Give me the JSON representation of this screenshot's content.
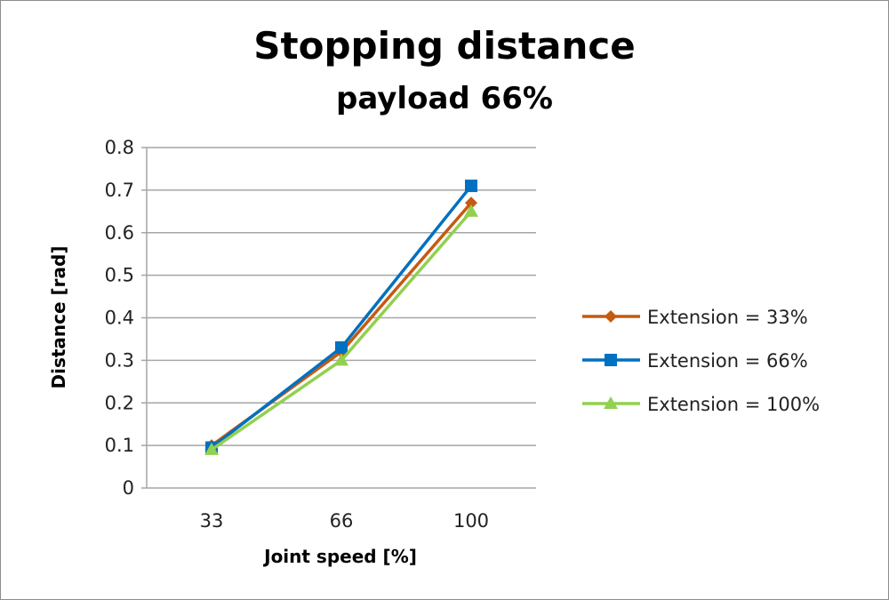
{
  "chart_data": {
    "type": "line",
    "title": "Stopping distance",
    "subtitle": "payload 66%",
    "xlabel": "Joint speed [%]",
    "ylabel": "Distance [rad]",
    "categories": [
      "33",
      "66",
      "100"
    ],
    "ylim": [
      0,
      0.8
    ],
    "yticks": [
      "0",
      "0.1",
      "0.2",
      "0.3",
      "0.4",
      "0.5",
      "0.6",
      "0.7",
      "0.8"
    ],
    "grid": true,
    "legend_position": "right",
    "series": [
      {
        "name": "Extension = 33%",
        "values": [
          0.1,
          0.32,
          0.67
        ],
        "color": "#c55a11",
        "marker": "diamond"
      },
      {
        "name": "Extension = 66%",
        "values": [
          0.095,
          0.33,
          0.71
        ],
        "color": "#0070c0",
        "marker": "square"
      },
      {
        "name": "Extension = 100%",
        "values": [
          0.09,
          0.3,
          0.65
        ],
        "color": "#92d050",
        "marker": "triangle"
      }
    ]
  }
}
